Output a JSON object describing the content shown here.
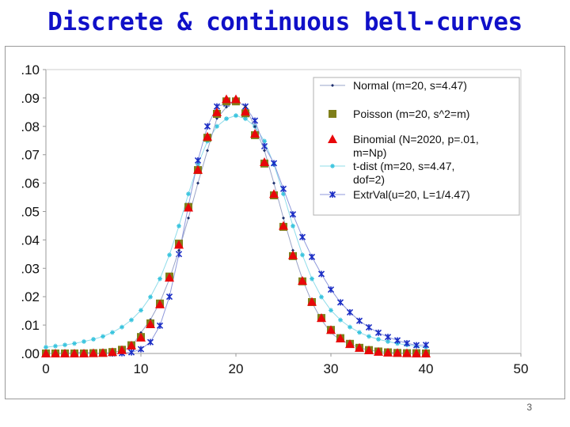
{
  "title": "Discrete & continuous bell-curves",
  "page_number": "3",
  "chart_data": {
    "type": "scatter",
    "title": "",
    "xlabel": "",
    "ylabel": "",
    "xlim": [
      0,
      50
    ],
    "ylim": [
      0,
      0.1
    ],
    "x_ticks": [
      "0",
      "10",
      "20",
      "30",
      "40",
      "50"
    ],
    "y_ticks": [
      ".00",
      ".01",
      ".02",
      ".03",
      ".04",
      ".05",
      ".06",
      ".07",
      ".08",
      ".09",
      ".10"
    ],
    "grid": false,
    "legend_position": "top-right",
    "series": [
      {
        "name": "Normal (m=20, s=4.47)",
        "color": "#1c2f6e",
        "marker": "small-diamond",
        "line": "#9aa4c8",
        "x": [
          0,
          1,
          2,
          3,
          4,
          5,
          6,
          7,
          8,
          9,
          10,
          11,
          12,
          13,
          14,
          15,
          16,
          17,
          18,
          19,
          20,
          21,
          22,
          23,
          24,
          25,
          26,
          27,
          28,
          29,
          30,
          31,
          32,
          33,
          34,
          35,
          36,
          37,
          38,
          39,
          40
        ],
        "y": [
          0.0,
          0.0001,
          0.0001,
          0.0002,
          0.0005,
          0.0001,
          0.0001,
          0.0004,
          0.001,
          0.0023,
          0.0073,
          0.0119,
          0.018,
          0.0262,
          0.0363,
          0.0477,
          0.06,
          0.0715,
          0.0828,
          0.0868,
          0.0892,
          0.0868,
          0.0799,
          0.0715,
          0.06,
          0.0477,
          0.0363,
          0.0262,
          0.018,
          0.0119,
          0.0073,
          0.0047,
          0.0034,
          0.002,
          0.0012,
          0.0007,
          0.0004,
          0.0002,
          0.0001,
          0.0,
          0.0
        ]
      },
      {
        "name": "Poisson (m=20, s^2=m)",
        "color": "#7f7f1a",
        "marker": "square",
        "line": "",
        "x": [
          0,
          1,
          2,
          3,
          4,
          5,
          6,
          7,
          8,
          9,
          10,
          11,
          12,
          13,
          14,
          15,
          16,
          17,
          18,
          19,
          20,
          21,
          22,
          23,
          24,
          25,
          26,
          27,
          28,
          29,
          30,
          31,
          32,
          33,
          34,
          35,
          36,
          37,
          38,
          39,
          40
        ],
        "y": [
          0.0,
          0.0,
          0.0,
          0.0,
          0.0,
          0.0001,
          0.0002,
          0.0005,
          0.0013,
          0.0029,
          0.0058,
          0.0106,
          0.0176,
          0.0271,
          0.0387,
          0.0516,
          0.0646,
          0.076,
          0.0844,
          0.0888,
          0.0888,
          0.0846,
          0.0769,
          0.0669,
          0.0557,
          0.0446,
          0.0343,
          0.0254,
          0.0181,
          0.0125,
          0.0083,
          0.0054,
          0.0034,
          0.002,
          0.0012,
          0.0007,
          0.0004,
          0.0002,
          0.0001,
          0.0001,
          0.0
        ]
      },
      {
        "name": "Binomial (N=2020, p=.01, m=Np)",
        "color": "#e8070a",
        "marker": "triangle",
        "line": "",
        "x": [
          0,
          1,
          2,
          3,
          4,
          5,
          6,
          7,
          8,
          9,
          10,
          11,
          12,
          13,
          14,
          15,
          16,
          17,
          18,
          19,
          20,
          21,
          22,
          23,
          24,
          25,
          26,
          27,
          28,
          29,
          30,
          31,
          32,
          33,
          34,
          35,
          36,
          37,
          38,
          39,
          40
        ],
        "y": [
          0.0,
          0.0,
          0.0,
          0.0,
          0.0,
          0.0001,
          0.0002,
          0.0005,
          0.0012,
          0.0028,
          0.0056,
          0.0103,
          0.0173,
          0.0267,
          0.0383,
          0.0514,
          0.0647,
          0.0764,
          0.085,
          0.0896,
          0.0896,
          0.0852,
          0.0774,
          0.0674,
          0.0562,
          0.045,
          0.0346,
          0.0256,
          0.0182,
          0.0125,
          0.0083,
          0.0053,
          0.0033,
          0.002,
          0.0011,
          0.0006,
          0.0003,
          0.0002,
          0.0001,
          0.0,
          0.0
        ]
      },
      {
        "name": "t-dist (m=20, s=4.47, dof=2)",
        "color": "#39c4de",
        "marker": "asterisk",
        "line": "#8fdcea",
        "x": [
          0,
          1,
          2,
          3,
          4,
          5,
          6,
          7,
          8,
          9,
          10,
          11,
          12,
          13,
          14,
          15,
          16,
          17,
          18,
          19,
          20,
          21,
          22,
          23,
          24,
          25,
          26,
          27,
          28,
          29,
          30,
          31,
          32,
          33,
          34,
          35,
          36,
          37,
          38,
          39,
          40
        ],
        "y": [
          0.0022,
          0.0026,
          0.003,
          0.0035,
          0.0042,
          0.005,
          0.006,
          0.0074,
          0.0093,
          0.0118,
          0.0152,
          0.0199,
          0.0263,
          0.0347,
          0.0449,
          0.0562,
          0.0666,
          0.0748,
          0.08,
          0.0827,
          0.0838,
          0.0827,
          0.08,
          0.0748,
          0.0666,
          0.0562,
          0.0449,
          0.0347,
          0.0263,
          0.0199,
          0.0152,
          0.0118,
          0.0093,
          0.0074,
          0.006,
          0.005,
          0.0042,
          0.0035,
          0.003,
          0.0026,
          0.0022
        ]
      },
      {
        "name": "ExtrVal(u=20, L=1/4.47)",
        "color": "#1a2cc4",
        "marker": "star",
        "line": "#8f99dc",
        "x": [
          0,
          1,
          2,
          3,
          4,
          5,
          6,
          7,
          8,
          9,
          10,
          11,
          12,
          13,
          14,
          15,
          16,
          17,
          18,
          19,
          20,
          21,
          22,
          23,
          24,
          25,
          26,
          27,
          28,
          29,
          30,
          31,
          32,
          33,
          34,
          35,
          36,
          37,
          38,
          39,
          40
        ],
        "y": [
          0.0,
          0.0,
          0.0,
          0.0,
          0.0,
          0.0,
          0.0,
          0.0,
          0.0001,
          0.0004,
          0.0015,
          0.004,
          0.0098,
          0.02,
          0.035,
          0.052,
          0.068,
          0.08,
          0.087,
          0.088,
          0.089,
          0.087,
          0.082,
          0.073,
          0.067,
          0.058,
          0.049,
          0.041,
          0.034,
          0.028,
          0.0225,
          0.018,
          0.0145,
          0.0115,
          0.0092,
          0.0073,
          0.0058,
          0.0046,
          0.0036,
          0.0029,
          0.003
        ]
      }
    ]
  }
}
